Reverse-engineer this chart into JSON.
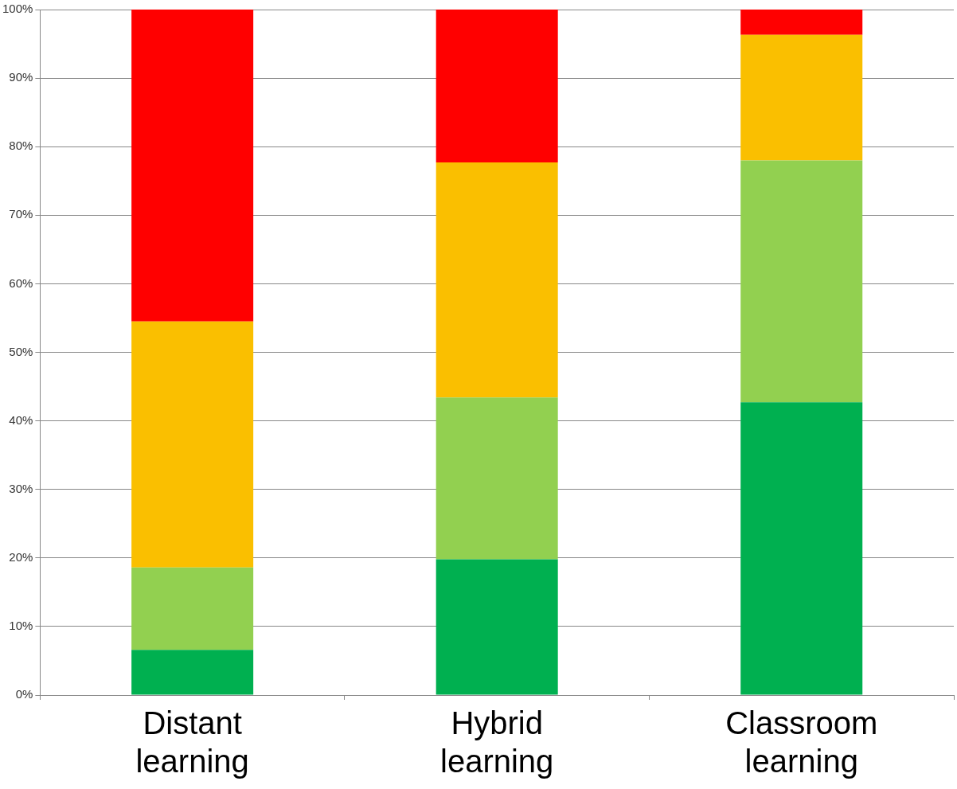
{
  "chart_data": {
    "type": "bar",
    "stacked": true,
    "categories": [
      "Distant learning",
      "Hybrid learning",
      "Classroom learning"
    ],
    "series": [
      {
        "color": "#00b050",
        "values": [
          6.6,
          19.8,
          42.7
        ]
      },
      {
        "color": "#92d050",
        "values": [
          12.0,
          23.6,
          35.3
        ]
      },
      {
        "color": "#fabf00",
        "values": [
          35.9,
          34.3,
          18.3
        ]
      },
      {
        "color": "#ff0000",
        "values": [
          45.5,
          22.3,
          3.7
        ]
      }
    ],
    "ylim": [
      0,
      100
    ],
    "yticks": [
      {
        "value": 0,
        "label": "0%"
      },
      {
        "value": 10,
        "label": "10%"
      },
      {
        "value": 20,
        "label": "20%"
      },
      {
        "value": 30,
        "label": "30%"
      },
      {
        "value": 40,
        "label": "40%"
      },
      {
        "value": 50,
        "label": "50%"
      },
      {
        "value": 60,
        "label": "60%"
      },
      {
        "value": 70,
        "label": "70%"
      },
      {
        "value": 80,
        "label": "80%"
      },
      {
        "value": 90,
        "label": "90%"
      },
      {
        "value": 100,
        "label": "100%"
      }
    ],
    "grid": "y",
    "legend": false
  }
}
